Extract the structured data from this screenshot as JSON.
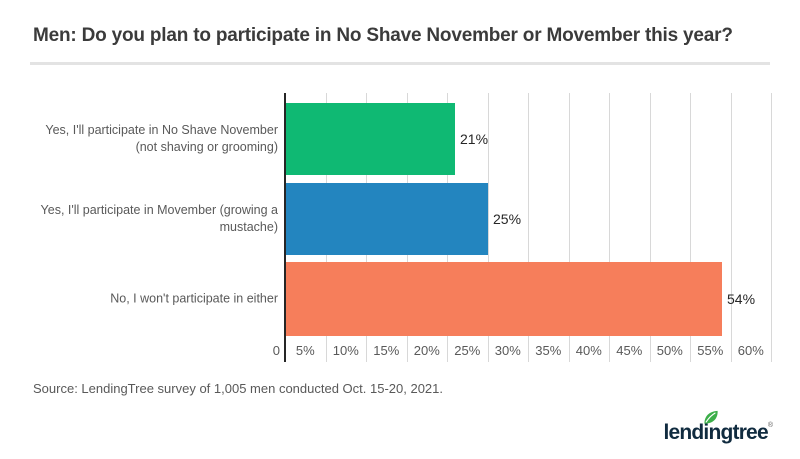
{
  "chart_data": {
    "type": "bar",
    "orientation": "horizontal",
    "title": "Men: Do you plan to participate in No Shave November or Movember this year?",
    "categories": [
      "Yes, I'll participate in No Shave November\n(not shaving or grooming)",
      "Yes, I'll participate in Movember (growing a\nmustache)",
      "No, I won't participate in either"
    ],
    "values": [
      21,
      25,
      54
    ],
    "value_labels": [
      "21%",
      "25%",
      "54%"
    ],
    "series_colors": [
      "#0fb973",
      "#2385bf",
      "#f67e5b"
    ],
    "xlabel": "",
    "ylabel": "",
    "xlim": [
      0,
      60
    ],
    "x_ticks": [
      0,
      5,
      10,
      15,
      20,
      25,
      30,
      35,
      40,
      45,
      50,
      55,
      60
    ],
    "x_tick_labels": [
      "0",
      "5%",
      "10%",
      "15%",
      "20%",
      "25%",
      "30%",
      "35%",
      "40%",
      "45%",
      "50%",
      "55%",
      "60%"
    ],
    "grid": true,
    "legend": false,
    "axis_color": "#262626",
    "grid_color": "#d8d8d8"
  },
  "footer": {
    "source": "Source: LendingTree survey of 1,005 men conducted Oct. 15-20, 2021.",
    "logo_text": "lendingtree",
    "registered_mark": "®",
    "brand_navy": "#102b3f",
    "leaf_green": "#3cae49"
  }
}
